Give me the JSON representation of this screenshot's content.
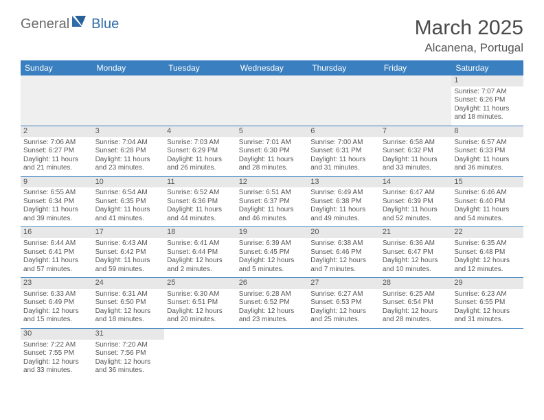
{
  "logo": {
    "text1": "General",
    "text2": "Blue"
  },
  "title": "March 2025",
  "location": "Alcanena, Portugal",
  "colors": {
    "header_bg": "#3a7fbf",
    "header_fg": "#ffffff",
    "daynum_bg": "#e8e8e8",
    "border": "#3a7fbf",
    "text": "#555555"
  },
  "weekdays": [
    "Sunday",
    "Monday",
    "Tuesday",
    "Wednesday",
    "Thursday",
    "Friday",
    "Saturday"
  ],
  "weeks": [
    [
      null,
      null,
      null,
      null,
      null,
      null,
      {
        "n": "1",
        "sunrise": "Sunrise: 7:07 AM",
        "sunset": "Sunset: 6:26 PM",
        "daylight": "Daylight: 11 hours and 18 minutes."
      }
    ],
    [
      {
        "n": "2",
        "sunrise": "Sunrise: 7:06 AM",
        "sunset": "Sunset: 6:27 PM",
        "daylight": "Daylight: 11 hours and 21 minutes."
      },
      {
        "n": "3",
        "sunrise": "Sunrise: 7:04 AM",
        "sunset": "Sunset: 6:28 PM",
        "daylight": "Daylight: 11 hours and 23 minutes."
      },
      {
        "n": "4",
        "sunrise": "Sunrise: 7:03 AM",
        "sunset": "Sunset: 6:29 PM",
        "daylight": "Daylight: 11 hours and 26 minutes."
      },
      {
        "n": "5",
        "sunrise": "Sunrise: 7:01 AM",
        "sunset": "Sunset: 6:30 PM",
        "daylight": "Daylight: 11 hours and 28 minutes."
      },
      {
        "n": "6",
        "sunrise": "Sunrise: 7:00 AM",
        "sunset": "Sunset: 6:31 PM",
        "daylight": "Daylight: 11 hours and 31 minutes."
      },
      {
        "n": "7",
        "sunrise": "Sunrise: 6:58 AM",
        "sunset": "Sunset: 6:32 PM",
        "daylight": "Daylight: 11 hours and 33 minutes."
      },
      {
        "n": "8",
        "sunrise": "Sunrise: 6:57 AM",
        "sunset": "Sunset: 6:33 PM",
        "daylight": "Daylight: 11 hours and 36 minutes."
      }
    ],
    [
      {
        "n": "9",
        "sunrise": "Sunrise: 6:55 AM",
        "sunset": "Sunset: 6:34 PM",
        "daylight": "Daylight: 11 hours and 39 minutes."
      },
      {
        "n": "10",
        "sunrise": "Sunrise: 6:54 AM",
        "sunset": "Sunset: 6:35 PM",
        "daylight": "Daylight: 11 hours and 41 minutes."
      },
      {
        "n": "11",
        "sunrise": "Sunrise: 6:52 AM",
        "sunset": "Sunset: 6:36 PM",
        "daylight": "Daylight: 11 hours and 44 minutes."
      },
      {
        "n": "12",
        "sunrise": "Sunrise: 6:51 AM",
        "sunset": "Sunset: 6:37 PM",
        "daylight": "Daylight: 11 hours and 46 minutes."
      },
      {
        "n": "13",
        "sunrise": "Sunrise: 6:49 AM",
        "sunset": "Sunset: 6:38 PM",
        "daylight": "Daylight: 11 hours and 49 minutes."
      },
      {
        "n": "14",
        "sunrise": "Sunrise: 6:47 AM",
        "sunset": "Sunset: 6:39 PM",
        "daylight": "Daylight: 11 hours and 52 minutes."
      },
      {
        "n": "15",
        "sunrise": "Sunrise: 6:46 AM",
        "sunset": "Sunset: 6:40 PM",
        "daylight": "Daylight: 11 hours and 54 minutes."
      }
    ],
    [
      {
        "n": "16",
        "sunrise": "Sunrise: 6:44 AM",
        "sunset": "Sunset: 6:41 PM",
        "daylight": "Daylight: 11 hours and 57 minutes."
      },
      {
        "n": "17",
        "sunrise": "Sunrise: 6:43 AM",
        "sunset": "Sunset: 6:42 PM",
        "daylight": "Daylight: 11 hours and 59 minutes."
      },
      {
        "n": "18",
        "sunrise": "Sunrise: 6:41 AM",
        "sunset": "Sunset: 6:44 PM",
        "daylight": "Daylight: 12 hours and 2 minutes."
      },
      {
        "n": "19",
        "sunrise": "Sunrise: 6:39 AM",
        "sunset": "Sunset: 6:45 PM",
        "daylight": "Daylight: 12 hours and 5 minutes."
      },
      {
        "n": "20",
        "sunrise": "Sunrise: 6:38 AM",
        "sunset": "Sunset: 6:46 PM",
        "daylight": "Daylight: 12 hours and 7 minutes."
      },
      {
        "n": "21",
        "sunrise": "Sunrise: 6:36 AM",
        "sunset": "Sunset: 6:47 PM",
        "daylight": "Daylight: 12 hours and 10 minutes."
      },
      {
        "n": "22",
        "sunrise": "Sunrise: 6:35 AM",
        "sunset": "Sunset: 6:48 PM",
        "daylight": "Daylight: 12 hours and 12 minutes."
      }
    ],
    [
      {
        "n": "23",
        "sunrise": "Sunrise: 6:33 AM",
        "sunset": "Sunset: 6:49 PM",
        "daylight": "Daylight: 12 hours and 15 minutes."
      },
      {
        "n": "24",
        "sunrise": "Sunrise: 6:31 AM",
        "sunset": "Sunset: 6:50 PM",
        "daylight": "Daylight: 12 hours and 18 minutes."
      },
      {
        "n": "25",
        "sunrise": "Sunrise: 6:30 AM",
        "sunset": "Sunset: 6:51 PM",
        "daylight": "Daylight: 12 hours and 20 minutes."
      },
      {
        "n": "26",
        "sunrise": "Sunrise: 6:28 AM",
        "sunset": "Sunset: 6:52 PM",
        "daylight": "Daylight: 12 hours and 23 minutes."
      },
      {
        "n": "27",
        "sunrise": "Sunrise: 6:27 AM",
        "sunset": "Sunset: 6:53 PM",
        "daylight": "Daylight: 12 hours and 25 minutes."
      },
      {
        "n": "28",
        "sunrise": "Sunrise: 6:25 AM",
        "sunset": "Sunset: 6:54 PM",
        "daylight": "Daylight: 12 hours and 28 minutes."
      },
      {
        "n": "29",
        "sunrise": "Sunrise: 6:23 AM",
        "sunset": "Sunset: 6:55 PM",
        "daylight": "Daylight: 12 hours and 31 minutes."
      }
    ],
    [
      {
        "n": "30",
        "sunrise": "Sunrise: 7:22 AM",
        "sunset": "Sunset: 7:55 PM",
        "daylight": "Daylight: 12 hours and 33 minutes."
      },
      {
        "n": "31",
        "sunrise": "Sunrise: 7:20 AM",
        "sunset": "Sunset: 7:56 PM",
        "daylight": "Daylight: 12 hours and 36 minutes."
      },
      null,
      null,
      null,
      null,
      null
    ]
  ]
}
